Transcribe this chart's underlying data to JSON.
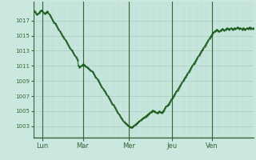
{
  "background_color": "#cbe8e0",
  "plot_bg_color": "#cbe8e0",
  "line_color": "#1a5c1a",
  "marker_color": "#1a5c1a",
  "grid_color_v": "#b0d8cc",
  "grid_color_h": "#aaccbb",
  "axis_color": "#336633",
  "tick_label_color": "#336633",
  "ylim": [
    1001.5,
    1019.5
  ],
  "yticks": [
    1003,
    1005,
    1007,
    1009,
    1011,
    1013,
    1015,
    1017
  ],
  "day_labels": [
    "Lun",
    "Mar",
    "Mer",
    "Jeu",
    "Ven"
  ],
  "day_positions": [
    0.04,
    0.225,
    0.435,
    0.63,
    0.81
  ],
  "pressure_curve": [
    1018.3,
    1018.2,
    1018.1,
    1017.9,
    1017.8,
    1017.9,
    1018.0,
    1018.2,
    1018.3,
    1018.3,
    1018.2,
    1018.0,
    1017.9,
    1018.0,
    1018.1,
    1018.2,
    1018.0,
    1017.8,
    1017.6,
    1017.4,
    1017.2,
    1017.0,
    1016.8,
    1016.6,
    1016.4,
    1016.2,
    1016.0,
    1015.8,
    1015.6,
    1015.4,
    1015.2,
    1015.0,
    1014.8,
    1014.6,
    1014.4,
    1014.2,
    1014.0,
    1013.8,
    1013.6,
    1013.4,
    1013.2,
    1013.0,
    1012.8,
    1012.6,
    1012.4,
    1012.2,
    1012.0,
    1011.8,
    1011.0,
    1010.8,
    1010.9,
    1011.0,
    1011.1,
    1011.2,
    1011.1,
    1011.0,
    1010.9,
    1010.8,
    1010.7,
    1010.6,
    1010.5,
    1010.4,
    1010.3,
    1010.2,
    1010.0,
    1009.8,
    1009.6,
    1009.4,
    1009.2,
    1009.0,
    1008.8,
    1008.6,
    1008.4,
    1008.2,
    1008.0,
    1007.8,
    1007.6,
    1007.4,
    1007.2,
    1007.0,
    1006.8,
    1006.6,
    1006.4,
    1006.2,
    1006.0,
    1005.8,
    1005.6,
    1005.4,
    1005.2,
    1005.0,
    1004.8,
    1004.6,
    1004.4,
    1004.2,
    1004.0,
    1003.8,
    1003.6,
    1003.5,
    1003.4,
    1003.3,
    1003.2,
    1003.1,
    1003.0,
    1002.9,
    1002.9,
    1002.9,
    1003.0,
    1003.1,
    1003.2,
    1003.3,
    1003.4,
    1003.5,
    1003.6,
    1003.7,
    1003.8,
    1003.9,
    1004.0,
    1004.1,
    1004.2,
    1004.3,
    1004.4,
    1004.5,
    1004.6,
    1004.7,
    1004.8,
    1004.9,
    1005.0,
    1005.1,
    1005.0,
    1005.0,
    1004.9,
    1004.8,
    1004.8,
    1004.9,
    1005.0,
    1004.9,
    1004.8,
    1004.9,
    1005.0,
    1005.2,
    1005.4,
    1005.6,
    1005.7,
    1005.8,
    1006.0,
    1006.2,
    1006.4,
    1006.6,
    1006.8,
    1007.0,
    1007.2,
    1007.4,
    1007.6,
    1007.8,
    1008.0,
    1008.2,
    1008.4,
    1008.6,
    1008.8,
    1009.0,
    1009.2,
    1009.4,
    1009.6,
    1009.8,
    1010.0,
    1010.2,
    1010.4,
    1010.6,
    1010.8,
    1011.0,
    1011.2,
    1011.4,
    1011.6,
    1011.8,
    1012.0,
    1012.2,
    1012.4,
    1012.6,
    1012.8,
    1013.0,
    1013.2,
    1013.4,
    1013.6,
    1013.8,
    1014.0,
    1014.2,
    1014.4,
    1014.6,
    1014.8,
    1015.0,
    1015.2,
    1015.4,
    1015.5,
    1015.6,
    1015.7,
    1015.8,
    1015.7,
    1015.6,
    1015.6,
    1015.7,
    1015.8,
    1015.9,
    1015.8,
    1015.7,
    1015.8,
    1015.9,
    1016.0,
    1015.9,
    1015.8,
    1015.9,
    1016.0,
    1015.9,
    1015.8,
    1015.9,
    1016.0,
    1015.9,
    1016.0,
    1016.1,
    1016.0,
    1015.9,
    1016.0,
    1015.9,
    1015.8,
    1016.0,
    1015.9,
    1015.8,
    1015.9,
    1016.0,
    1015.9,
    1016.0,
    1016.1,
    1015.9,
    1016.0,
    1015.9,
    1016.0
  ]
}
